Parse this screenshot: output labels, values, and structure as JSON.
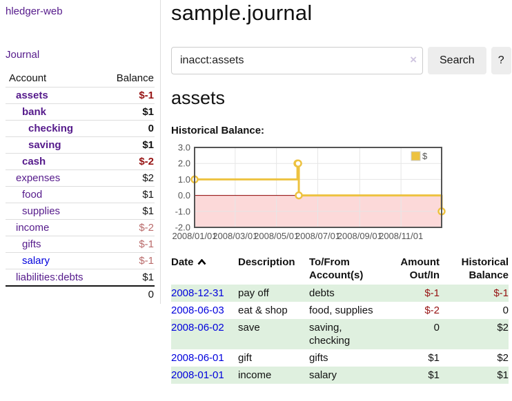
{
  "colors": {
    "purple": "#551a8b",
    "blue": "#0000dd",
    "neg_strong": "#961212",
    "neg_soft": "#b96a6a",
    "row_green": "#dff0df",
    "gold": "#edc240",
    "pink_region": "#fcd9d9",
    "zero_line": "#8b0000",
    "grid": "#e6e6e6",
    "chart_border": "#545454",
    "tick_text": "#545454",
    "border_light": "#dddddd",
    "button_bg": "#ededed"
  },
  "app": {
    "title": "hledger-web"
  },
  "sidebar": {
    "journal_link": "Journal",
    "accounts_table": {
      "headers": [
        "Account",
        "Balance"
      ],
      "rows": [
        {
          "name": "assets",
          "balance": "$-1",
          "indent": 1,
          "bold": true,
          "balance_style": "strong-negative",
          "link_style": "purple"
        },
        {
          "name": "bank",
          "balance": "$1",
          "indent": 2,
          "bold": true,
          "balance_style": "normal",
          "link_style": "purple"
        },
        {
          "name": "checking",
          "balance": "0",
          "indent": 3,
          "bold": true,
          "balance_style": "normal",
          "link_style": "purple"
        },
        {
          "name": "saving",
          "balance": "$1",
          "indent": 3,
          "bold": true,
          "balance_style": "normal",
          "link_style": "purple"
        },
        {
          "name": "cash",
          "balance": "$-2",
          "indent": 2,
          "bold": true,
          "balance_style": "strong-negative",
          "link_style": "purple"
        },
        {
          "name": "expenses",
          "balance": "$2",
          "indent": 1,
          "bold": false,
          "balance_style": "normal",
          "link_style": "purple"
        },
        {
          "name": "food",
          "balance": "$1",
          "indent": 2,
          "bold": false,
          "balance_style": "normal",
          "link_style": "purple"
        },
        {
          "name": "supplies",
          "balance": "$1",
          "indent": 2,
          "bold": false,
          "balance_style": "normal",
          "link_style": "purple"
        },
        {
          "name": "income",
          "balance": "$-2",
          "indent": 1,
          "bold": false,
          "balance_style": "soft-negative",
          "link_style": "purple"
        },
        {
          "name": "gifts",
          "balance": "$-1",
          "indent": 2,
          "bold": false,
          "balance_style": "soft-negative",
          "link_style": "purple"
        },
        {
          "name": "salary",
          "balance": "$-1",
          "indent": 2,
          "bold": false,
          "balance_style": "soft-negative",
          "link_style": "blue"
        },
        {
          "name": "liabilities:debts",
          "balance": "$1",
          "indent": 1,
          "bold": false,
          "balance_style": "normal",
          "link_style": "purple"
        }
      ],
      "total": "0"
    }
  },
  "main": {
    "title": "sample.journal",
    "search": {
      "value": "inacct:assets",
      "clear_icon": "×",
      "button_label": "Search",
      "help_label": "?"
    },
    "account_heading": "assets",
    "chart_label": "Historical Balance:",
    "register_table": {
      "headers": [
        "Date",
        "Description",
        "To/From Account(s)",
        "Amount Out/In",
        "Historical Balance"
      ],
      "rows": [
        {
          "date": "2008-12-31",
          "description": "pay off",
          "accounts": "debts",
          "amount": "$-1",
          "balance": "$-1",
          "amount_negative": true,
          "balance_negative": true
        },
        {
          "date": "2008-06-03",
          "description": "eat & shop",
          "accounts": "food, supplies",
          "amount": "$-2",
          "balance": "0",
          "amount_negative": true,
          "balance_negative": false
        },
        {
          "date": "2008-06-02",
          "description": "save",
          "accounts": "saving, checking",
          "amount": "0",
          "balance": "$2",
          "amount_negative": false,
          "balance_negative": false
        },
        {
          "date": "2008-06-01",
          "description": "gift",
          "accounts": "gifts",
          "amount": "$1",
          "balance": "$2",
          "amount_negative": false,
          "balance_negative": false
        },
        {
          "date": "2008-01-01",
          "description": "income",
          "accounts": "salary",
          "amount": "$1",
          "balance": "$1",
          "amount_negative": false,
          "balance_negative": false
        }
      ]
    }
  },
  "chart_data": {
    "type": "line",
    "title": "Historical Balance",
    "step": true,
    "series": [
      {
        "name": "$",
        "color": "#edc240",
        "points": [
          [
            "2008-01-01",
            1
          ],
          [
            "2008-06-01",
            2
          ],
          [
            "2008-06-02",
            2
          ],
          [
            "2008-06-03",
            0
          ],
          [
            "2008-12-31",
            -1
          ]
        ]
      }
    ],
    "xlim": [
      "2008-01-01",
      "2008-12-31"
    ],
    "ylim": [
      -2,
      3
    ],
    "x_ticks": [
      "2008/01/01",
      "2008/03/01",
      "2008/05/01",
      "2008/07/01",
      "2008/09/01",
      "2008/11/01"
    ],
    "y_ticks": [
      "3.0",
      "2.0",
      "1.0",
      "0.0",
      "-1.0",
      "-2.0"
    ],
    "grid": true,
    "legend_position": "top-right",
    "negative_region_color": "#fcd9d9",
    "zero_line_color": "#8b0000"
  }
}
